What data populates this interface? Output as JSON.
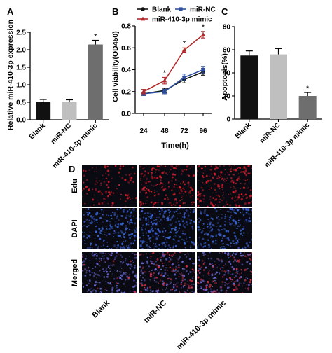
{
  "colors": {
    "blank": "#111111",
    "nc": "#bfbfbf",
    "mimic": "#6e6e6e",
    "lineBlank": "#111111",
    "lineNC": "#2d4f9e",
    "lineMimic": "#b02a2a",
    "axis": "#000000",
    "micro_bg": "#0a0a12",
    "edu": "#d61e2a",
    "dapi": "#3a66d8",
    "merged_red": "#d9304a",
    "merged_blue": "#6b6ad8"
  },
  "panels": {
    "a": "A",
    "b": "B",
    "c": "C",
    "d": "D"
  },
  "chart_data": [
    {
      "id": "A",
      "type": "bar",
      "categories": [
        "Blank",
        "miR-NC",
        "miR-410-3p mimic"
      ],
      "values": [
        0.5,
        0.5,
        2.15
      ],
      "errors": [
        0.08,
        0.07,
        0.12
      ],
      "significance": [
        "",
        "",
        "*"
      ],
      "ylabel": "Relative miR-410-3p expression",
      "ylim": [
        0,
        2.5
      ],
      "yticks": [
        "0.0",
        "0.5",
        "1.0",
        "1.5",
        "2.0",
        "2.5"
      ]
    },
    {
      "id": "B",
      "type": "line",
      "x": [
        24,
        48,
        72,
        96
      ],
      "xticks": [
        "24",
        "48",
        "72",
        "96"
      ],
      "xlabel": "Time(h)",
      "ylabel": "Cell viability(OD450)",
      "ylim": [
        0,
        0.8
      ],
      "yticks": [
        "0.0",
        "0.2",
        "0.4",
        "0.6",
        "0.8"
      ],
      "significance": [
        "",
        "*",
        "*",
        "*"
      ],
      "series": [
        {
          "name": "Blank",
          "values": [
            0.18,
            0.21,
            0.31,
            0.38
          ],
          "errors": [
            0.015,
            0.02,
            0.03,
            0.03
          ]
        },
        {
          "name": "miR-NC",
          "values": [
            0.18,
            0.2,
            0.33,
            0.4
          ],
          "errors": [
            0.015,
            0.02,
            0.03,
            0.03
          ]
        },
        {
          "name": "miR-410-3p mimic",
          "values": [
            0.2,
            0.3,
            0.58,
            0.72
          ],
          "errors": [
            0.02,
            0.03,
            0.02,
            0.03
          ]
        }
      ]
    },
    {
      "id": "C",
      "type": "bar",
      "categories": [
        "Blank",
        "miR-NC",
        "miR-410-3p mimic"
      ],
      "values": [
        55,
        56,
        20
      ],
      "errors": [
        4,
        5,
        3
      ],
      "significance": [
        "",
        "",
        "*"
      ],
      "ylabel": "Apoptosis(%)",
      "ylim": [
        0,
        80
      ],
      "yticks": [
        "0",
        "20",
        "40",
        "60",
        "80"
      ]
    }
  ],
  "micro": {
    "rows": [
      "Edu",
      "DAPI",
      "Merged"
    ],
    "cols": [
      "Blank",
      "miR-NC",
      "miR-410-3p mimic"
    ],
    "density": [
      [
        0.18,
        0.55,
        0.62
      ],
      [
        0.75,
        0.8,
        0.72
      ],
      [
        0.7,
        0.75,
        0.8
      ]
    ]
  }
}
